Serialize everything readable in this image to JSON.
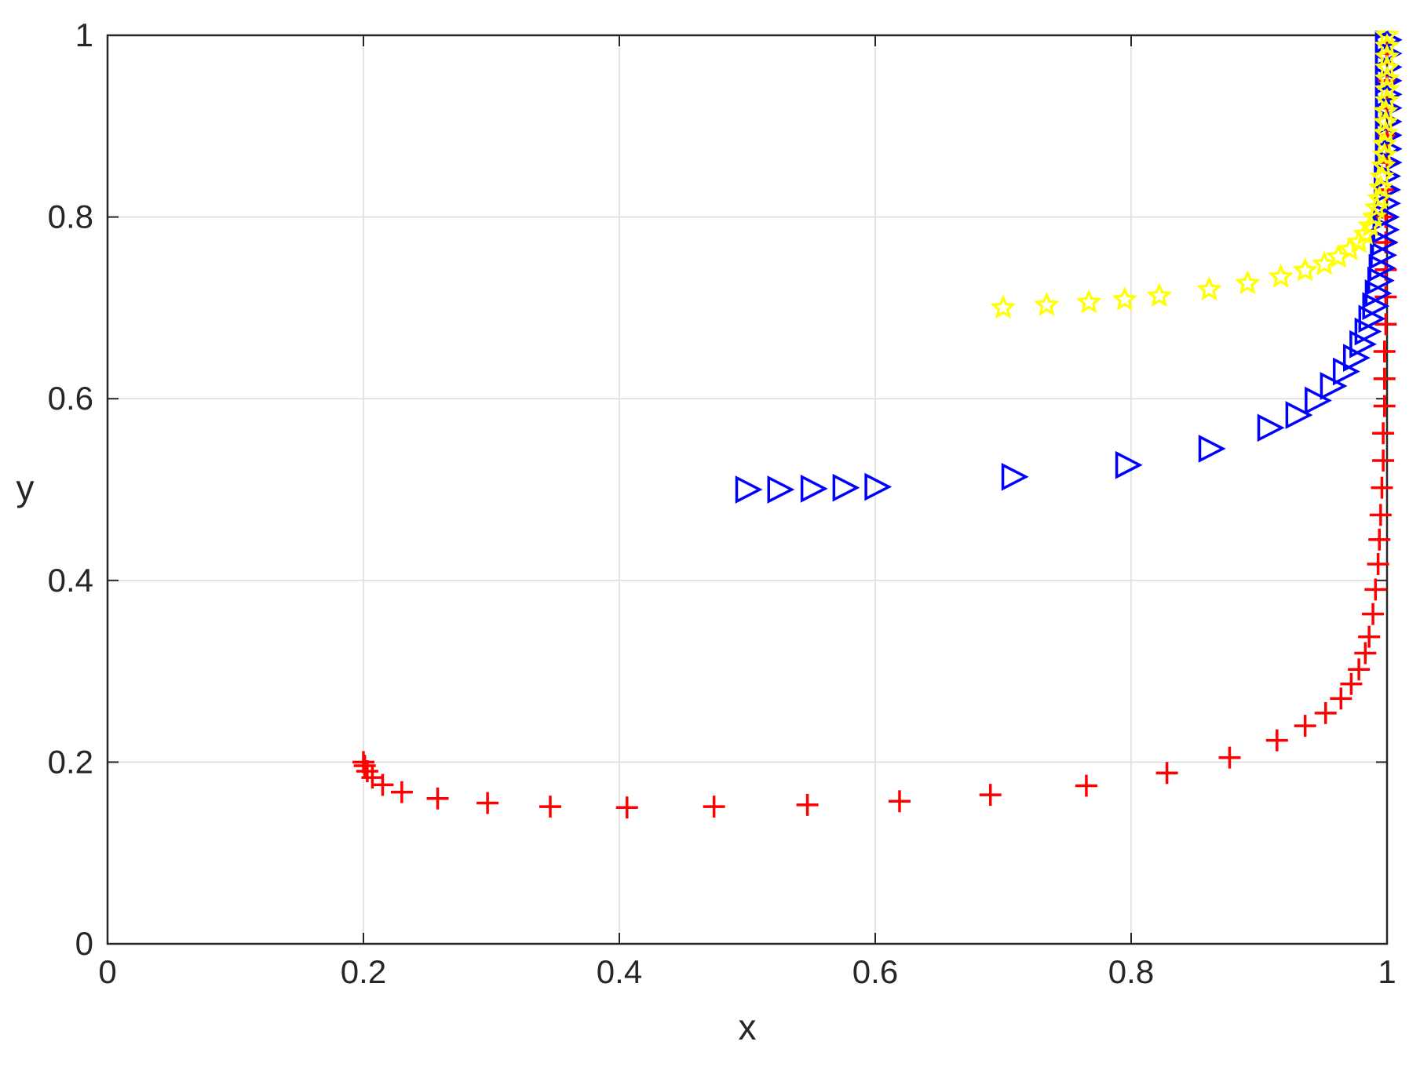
{
  "chart_data": {
    "type": "scatter",
    "title": "",
    "xlabel": "x",
    "ylabel": "y",
    "xlim": [
      0,
      1
    ],
    "ylim": [
      0,
      1
    ],
    "xticks": [
      0,
      0.2,
      0.4,
      0.6,
      0.8,
      1
    ],
    "yticks": [
      0,
      0.2,
      0.4,
      0.6,
      0.8,
      1
    ],
    "xtick_labels": [
      "0",
      "0.2",
      "0.4",
      "0.6",
      "0.8",
      "1"
    ],
    "ytick_labels": [
      "0",
      "0.2",
      "0.4",
      "0.6",
      "0.8",
      "1"
    ],
    "grid": true,
    "box": true,
    "series": [
      {
        "marker": "plus",
        "color": "#ff0000",
        "points": [
          [
            0.2,
            0.2
          ],
          [
            0.201,
            0.196
          ],
          [
            0.203,
            0.19
          ],
          [
            0.207,
            0.183
          ],
          [
            0.215,
            0.175
          ],
          [
            0.23,
            0.167
          ],
          [
            0.258,
            0.16
          ],
          [
            0.297,
            0.155
          ],
          [
            0.346,
            0.151
          ],
          [
            0.406,
            0.15
          ],
          [
            0.474,
            0.151
          ],
          [
            0.547,
            0.153
          ],
          [
            0.619,
            0.157
          ],
          [
            0.69,
            0.164
          ],
          [
            0.765,
            0.174
          ],
          [
            0.828,
            0.188
          ],
          [
            0.877,
            0.205
          ],
          [
            0.914,
            0.224
          ],
          [
            0.936,
            0.24
          ],
          [
            0.952,
            0.254
          ],
          [
            0.964,
            0.27
          ],
          [
            0.972,
            0.286
          ],
          [
            0.978,
            0.302
          ],
          [
            0.983,
            0.32
          ],
          [
            0.986,
            0.338
          ],
          [
            0.989,
            0.363
          ],
          [
            0.991,
            0.39
          ],
          [
            0.993,
            0.418
          ],
          [
            0.994,
            0.445
          ],
          [
            0.995,
            0.472
          ],
          [
            0.996,
            0.502
          ],
          [
            0.997,
            0.532
          ],
          [
            0.997,
            0.562
          ],
          [
            0.998,
            0.592
          ],
          [
            0.998,
            0.622
          ],
          [
            0.998,
            0.652
          ],
          [
            0.999,
            0.682
          ],
          [
            0.999,
            0.712
          ],
          [
            0.999,
            0.742
          ],
          [
            0.999,
            0.772
          ],
          [
            0.999,
            0.8
          ],
          [
            1.0,
            0.83
          ],
          [
            1.0,
            0.86
          ],
          [
            1.0,
            0.89
          ],
          [
            1.0,
            0.92
          ],
          [
            1.0,
            0.95
          ],
          [
            1.0,
            0.98
          ]
        ]
      },
      {
        "marker": "triangle-right",
        "color": "#0000ff",
        "points": [
          [
            0.5,
            0.5
          ],
          [
            0.525,
            0.5
          ],
          [
            0.551,
            0.501
          ],
          [
            0.576,
            0.502
          ],
          [
            0.601,
            0.503
          ],
          [
            0.708,
            0.514
          ],
          [
            0.797,
            0.527
          ],
          [
            0.862,
            0.545
          ],
          [
            0.908,
            0.568
          ],
          [
            0.93,
            0.582
          ],
          [
            0.945,
            0.598
          ],
          [
            0.957,
            0.614
          ],
          [
            0.967,
            0.63
          ],
          [
            0.975,
            0.645
          ],
          [
            0.98,
            0.66
          ],
          [
            0.984,
            0.674
          ],
          [
            0.987,
            0.688
          ],
          [
            0.99,
            0.702
          ],
          [
            0.992,
            0.716
          ],
          [
            0.994,
            0.73
          ],
          [
            0.995,
            0.744
          ],
          [
            0.996,
            0.758
          ],
          [
            0.997,
            0.772
          ],
          [
            0.998,
            0.786
          ],
          [
            0.998,
            0.8
          ],
          [
            0.999,
            0.815
          ],
          [
            0.999,
            0.83
          ],
          [
            0.999,
            0.845
          ],
          [
            1.0,
            0.86
          ],
          [
            1.0,
            0.875
          ],
          [
            1.0,
            0.89
          ],
          [
            1.0,
            0.905
          ],
          [
            1.0,
            0.92
          ],
          [
            1.0,
            0.935
          ],
          [
            1.0,
            0.95
          ],
          [
            1.0,
            0.965
          ],
          [
            1.0,
            0.98
          ],
          [
            1.0,
            0.995
          ],
          [
            1.0,
            1.01
          ]
        ]
      },
      {
        "marker": "pentagram",
        "color": "#ffff00",
        "points": [
          [
            0.7,
            0.7
          ],
          [
            0.734,
            0.703
          ],
          [
            0.767,
            0.706
          ],
          [
            0.795,
            0.709
          ],
          [
            0.822,
            0.713
          ],
          [
            0.861,
            0.72
          ],
          [
            0.891,
            0.727
          ],
          [
            0.917,
            0.734
          ],
          [
            0.936,
            0.741
          ],
          [
            0.951,
            0.748
          ],
          [
            0.962,
            0.756
          ],
          [
            0.971,
            0.764
          ],
          [
            0.978,
            0.772
          ],
          [
            0.983,
            0.781
          ],
          [
            0.987,
            0.79
          ],
          [
            0.99,
            0.8
          ],
          [
            0.992,
            0.81
          ],
          [
            0.994,
            0.82
          ],
          [
            0.995,
            0.832
          ],
          [
            0.996,
            0.844
          ],
          [
            0.997,
            0.856
          ],
          [
            0.998,
            0.868
          ],
          [
            0.998,
            0.88
          ],
          [
            0.999,
            0.892
          ],
          [
            0.999,
            0.904
          ],
          [
            0.999,
            0.916
          ],
          [
            1.0,
            0.928
          ],
          [
            1.0,
            0.94
          ],
          [
            1.0,
            0.952
          ],
          [
            1.0,
            0.964
          ],
          [
            1.0,
            0.976
          ],
          [
            1.0,
            0.988
          ],
          [
            1.0,
            1.0
          ]
        ]
      }
    ]
  }
}
